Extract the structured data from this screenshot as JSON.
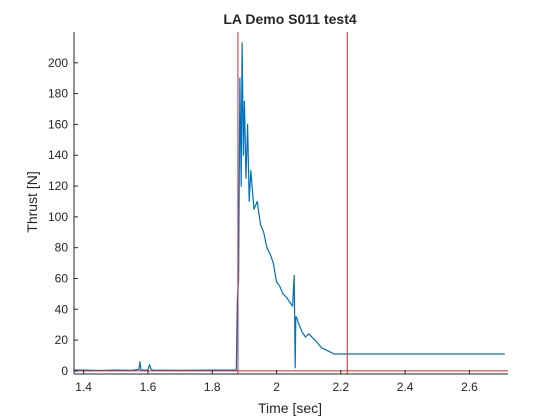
{
  "chart_data": {
    "type": "line",
    "title": "LA Demo S011 test4",
    "xlabel": "Time [sec]",
    "ylabel": "Thrust [N]",
    "xlim": [
      1.37,
      2.72
    ],
    "ylim": [
      -2,
      220
    ],
    "xticks": [
      1.4,
      1.6,
      1.8,
      2.0,
      2.2,
      2.4,
      2.6
    ],
    "xtick_labels": [
      "1.4",
      "1.6",
      "1.8",
      "2",
      "2.2",
      "2.4",
      "2.6"
    ],
    "yticks": [
      0,
      20,
      40,
      60,
      80,
      100,
      120,
      140,
      160,
      180,
      200
    ],
    "ytick_labels": [
      "0",
      "20",
      "40",
      "60",
      "80",
      "100",
      "120",
      "140",
      "160",
      "180",
      "200"
    ],
    "grid": false,
    "series": [
      {
        "color": "#0072BD",
        "x": [
          1.37,
          1.4,
          1.45,
          1.5,
          1.55,
          1.572,
          1.575,
          1.578,
          1.6,
          1.605,
          1.61,
          1.615,
          1.7,
          1.8,
          1.86,
          1.875,
          1.878,
          1.882,
          1.886,
          1.89,
          1.893,
          1.897,
          1.9,
          1.905,
          1.91,
          1.915,
          1.92,
          1.93,
          1.94,
          1.95,
          1.96,
          1.97,
          1.98,
          1.99,
          2.0,
          2.01,
          2.02,
          2.03,
          2.04,
          2.05,
          2.055,
          2.058,
          2.06,
          2.062,
          2.07,
          2.08,
          2.09,
          2.1,
          2.12,
          2.14,
          2.16,
          2.18,
          2.2,
          2.22,
          2.3,
          2.4,
          2.5,
          2.6,
          2.71
        ],
        "y": [
          0.5,
          0.5,
          0.3,
          0.5,
          0.4,
          1,
          6,
          0.5,
          0.5,
          4,
          1,
          0.5,
          0.4,
          0.5,
          0.5,
          0.5,
          45,
          60,
          190,
          120,
          213,
          140,
          175,
          125,
          160,
          110,
          130,
          105,
          110,
          95,
          90,
          80,
          76,
          70,
          58,
          55,
          50,
          48,
          45,
          42,
          62,
          2,
          35,
          35,
          30,
          25,
          22,
          24,
          20,
          15,
          13,
          11,
          11,
          11,
          11,
          11,
          11,
          11,
          11
        ]
      }
    ],
    "vlines": [
      {
        "x": 1.88,
        "color": "#d62728"
      },
      {
        "x": 2.22,
        "color": "#d62728"
      }
    ],
    "hlines": [
      {
        "y": 0,
        "color": "#d62728"
      }
    ]
  }
}
